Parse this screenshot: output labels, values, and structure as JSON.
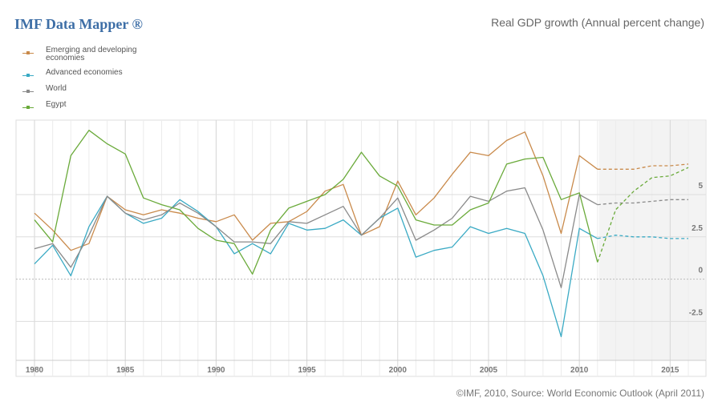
{
  "brand": "IMF Data Mapper ®",
  "title": "Real GDP growth (Annual percent change)",
  "source": "©IMF, 2010, Source: World Economic Outlook (April 2011)",
  "colors": {
    "emerging": "#c98a4b",
    "advanced": "#3aaac4",
    "world": "#8a8a8a",
    "egypt": "#6aaa3a"
  },
  "legend": [
    {
      "key": "emerging",
      "label": "Emerging and developing economies"
    },
    {
      "key": "advanced",
      "label": "Advanced economies"
    },
    {
      "key": "world",
      "label": "World"
    },
    {
      "key": "egypt",
      "label": "Egypt"
    }
  ],
  "chart_data": {
    "type": "line",
    "title": "Real GDP growth (Annual percent change)",
    "xlim": [
      1980,
      2016
    ],
    "ylim": [
      -4.8,
      9.4
    ],
    "projection_start": 2011,
    "x_ticks": [
      1980,
      1985,
      1990,
      1995,
      2000,
      2005,
      2010,
      2015
    ],
    "y_ticks": [
      {
        "value": 5,
        "label": "5"
      },
      {
        "value": 2.5,
        "label": "2.5"
      },
      {
        "value": 0,
        "label": "0"
      },
      {
        "value": -2.5,
        "label": "-2.5"
      }
    ],
    "x": [
      1980,
      1981,
      1982,
      1983,
      1984,
      1985,
      1986,
      1987,
      1988,
      1989,
      1990,
      1991,
      1992,
      1993,
      1994,
      1995,
      1996,
      1997,
      1998,
      1999,
      2000,
      2001,
      2002,
      2003,
      2004,
      2005,
      2006,
      2007,
      2008,
      2009,
      2010,
      2011,
      2012,
      2013,
      2014,
      2015,
      2016
    ],
    "series": [
      {
        "key": "emerging",
        "name": "Emerging and developing economies",
        "values": [
          3.9,
          2.9,
          1.7,
          2.1,
          4.9,
          4.1,
          3.8,
          4.1,
          3.9,
          3.6,
          3.4,
          3.8,
          2.3,
          3.3,
          3.4,
          4.0,
          5.2,
          5.6,
          2.6,
          3.1,
          5.8,
          3.8,
          4.8,
          6.2,
          7.5,
          7.3,
          8.2,
          8.7,
          6.1,
          2.7,
          7.3,
          6.5,
          6.5,
          6.5,
          6.7,
          6.7,
          6.8
        ]
      },
      {
        "key": "advanced",
        "name": "Advanced economies",
        "values": [
          0.9,
          2.0,
          0.2,
          3.1,
          4.9,
          3.9,
          3.3,
          3.6,
          4.7,
          4.0,
          3.1,
          1.5,
          2.1,
          1.5,
          3.3,
          2.9,
          3.0,
          3.5,
          2.6,
          3.6,
          4.2,
          1.3,
          1.7,
          1.9,
          3.1,
          2.7,
          3.0,
          2.7,
          0.2,
          -3.4,
          3.0,
          2.4,
          2.6,
          2.5,
          2.5,
          2.4,
          2.4
        ]
      },
      {
        "key": "world",
        "name": "World",
        "values": [
          1.8,
          2.1,
          0.7,
          2.6,
          4.9,
          3.9,
          3.5,
          3.8,
          4.5,
          3.9,
          3.1,
          2.2,
          2.2,
          2.1,
          3.4,
          3.3,
          3.8,
          4.3,
          2.6,
          3.6,
          4.8,
          2.3,
          2.9,
          3.6,
          4.9,
          4.6,
          5.2,
          5.4,
          2.9,
          -0.5,
          5.0,
          4.4,
          4.5,
          4.5,
          4.6,
          4.7,
          4.7
        ]
      },
      {
        "key": "egypt",
        "name": "Egypt",
        "values": [
          3.5,
          2.2,
          7.3,
          8.8,
          8.0,
          7.4,
          4.8,
          4.4,
          4.1,
          3.0,
          2.3,
          2.1,
          0.3,
          2.9,
          4.2,
          4.6,
          5.0,
          5.9,
          7.5,
          6.1,
          5.5,
          3.5,
          3.2,
          3.2,
          4.1,
          4.5,
          6.8,
          7.1,
          7.2,
          4.7,
          5.1,
          1.0,
          4.1,
          5.2,
          6.0,
          6.1,
          6.6
        ]
      }
    ]
  }
}
